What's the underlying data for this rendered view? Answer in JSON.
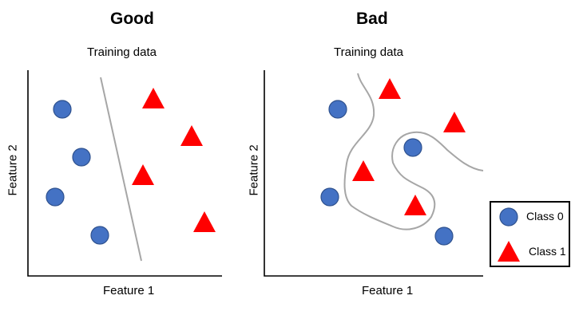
{
  "panels": [
    {
      "title": "Good",
      "subtitle": "Training data",
      "xlabel": "Feature 1",
      "ylabel": "Feature 2",
      "boundary": "straight line separating classes",
      "class0_points": 4,
      "class1_points": 4
    },
    {
      "title": "Bad",
      "subtitle": "Training data",
      "xlabel": "Feature 1",
      "ylabel": "Feature 2",
      "boundary": "wiggly curve overfitting training points",
      "class0_points": 4,
      "class1_points": 4
    }
  ],
  "legend": {
    "class0": "Class 0",
    "class1": "Class 1"
  },
  "colors": {
    "class0": "#4472c4",
    "class0_stroke": "#2f528f",
    "class1": "#ff0000",
    "boundary": "#a6a6a6",
    "axis": "#000000"
  }
}
